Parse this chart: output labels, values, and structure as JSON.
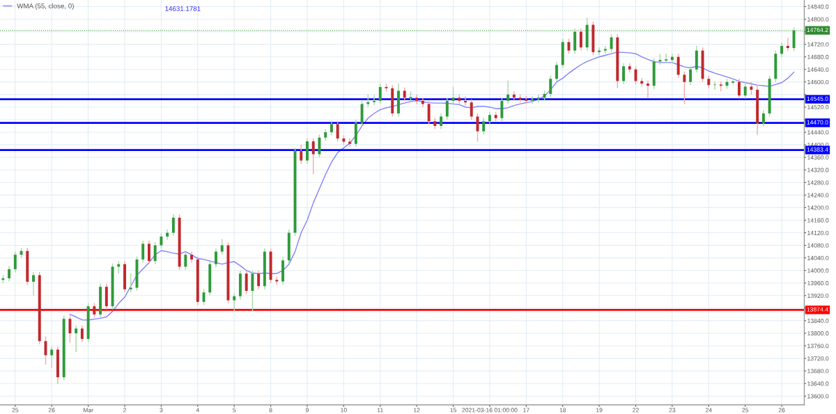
{
  "chart_data": {
    "type": "candlestick",
    "categories": [
      null,
      null,
      "25",
      null,
      null,
      null,
      null,
      null,
      "26",
      null,
      null,
      null,
      null,
      null,
      "Mar",
      null,
      null,
      null,
      null,
      null,
      "2",
      null,
      null,
      null,
      null,
      null,
      "3",
      null,
      null,
      null,
      null,
      null,
      "4",
      null,
      null,
      null,
      null,
      null,
      "5",
      null,
      null,
      null,
      null,
      null,
      "8",
      null,
      null,
      null,
      null,
      null,
      "9",
      null,
      null,
      null,
      null,
      null,
      "10",
      null,
      null,
      null,
      null,
      null,
      "11",
      null,
      null,
      null,
      null,
      null,
      "12",
      null,
      null,
      null,
      null,
      null,
      "15",
      null,
      null,
      null,
      null,
      null,
      "2021-03-16 01:00:00",
      null,
      null,
      null,
      null,
      null,
      "17",
      null,
      null,
      null,
      null,
      null,
      "18",
      null,
      null,
      null,
      null,
      null,
      "19",
      null,
      null,
      null,
      null,
      null,
      "22",
      null,
      null,
      null,
      null,
      null,
      "23",
      null,
      null,
      null,
      null,
      null,
      "24",
      null,
      null,
      null,
      null,
      null,
      "25",
      null,
      null,
      null,
      null,
      null,
      "26",
      null,
      null
    ],
    "ohlc": [
      [
        13970,
        13985,
        13960,
        13975
      ],
      [
        13975,
        14014,
        13965,
        14004
      ],
      [
        14004,
        14060,
        13994,
        14050
      ],
      [
        14050,
        14072,
        14040,
        14062
      ],
      [
        14062,
        14072,
        13954,
        13964
      ],
      [
        13964,
        13995,
        13920,
        13985
      ],
      [
        13985,
        13995,
        13765,
        13775
      ],
      [
        13775,
        13790,
        13700,
        13730
      ],
      [
        13730,
        13758,
        13690,
        13748
      ],
      [
        13748,
        13758,
        13638,
        13660
      ],
      [
        13660,
        13856,
        13650,
        13846
      ],
      [
        13846,
        13856,
        13770,
        13800
      ],
      [
        13800,
        13825,
        13740,
        13815
      ],
      [
        13815,
        13825,
        13772,
        13782
      ],
      [
        13782,
        13896,
        13772,
        13886
      ],
      [
        13886,
        13896,
        13850,
        13860
      ],
      [
        13860,
        13958,
        13850,
        13948
      ],
      [
        13948,
        13958,
        13876,
        13886
      ],
      [
        13886,
        14022,
        13876,
        14012
      ],
      [
        14012,
        14030,
        13990,
        14020
      ],
      [
        14020,
        14030,
        13930,
        13940
      ],
      [
        13940,
        13990,
        13930,
        13945
      ],
      [
        13945,
        14045,
        13935,
        14035
      ],
      [
        14035,
        14095,
        14025,
        14085
      ],
      [
        14085,
        14095,
        14020,
        14030
      ],
      [
        14030,
        14090,
        14020,
        14080
      ],
      [
        14080,
        14118,
        14070,
        14108
      ],
      [
        14108,
        14130,
        14098,
        14120
      ],
      [
        14120,
        14180,
        14110,
        14168
      ],
      [
        14168,
        14178,
        14002,
        14012
      ],
      [
        14012,
        14060,
        14002,
        14050
      ],
      [
        14050,
        14060,
        14025,
        14035
      ],
      [
        14035,
        14045,
        13890,
        13900
      ],
      [
        13900,
        13940,
        13890,
        13930
      ],
      [
        13930,
        14030,
        13920,
        14020
      ],
      [
        14020,
        14070,
        14010,
        14060
      ],
      [
        14060,
        14100,
        14050,
        14080
      ],
      [
        14080,
        14090,
        13895,
        13905
      ],
      [
        13905,
        13928,
        13870,
        13918
      ],
      [
        13918,
        14000,
        13908,
        13990
      ],
      [
        13990,
        14000,
        13925,
        13935
      ],
      [
        13935,
        14000,
        13870,
        13990
      ],
      [
        13990,
        14000,
        13940,
        13950
      ],
      [
        13950,
        14070,
        13940,
        14060
      ],
      [
        14060,
        14070,
        13960,
        13970
      ],
      [
        13970,
        13980,
        13955,
        13965
      ],
      [
        13965,
        14042,
        13955,
        14032
      ],
      [
        14032,
        14130,
        14022,
        14120
      ],
      [
        14120,
        14390,
        14110,
        14380
      ],
      [
        14380,
        14400,
        14340,
        14350
      ],
      [
        14350,
        14421,
        14340,
        14411
      ],
      [
        14411,
        14421,
        14306,
        14370
      ],
      [
        14370,
        14433,
        14360,
        14423
      ],
      [
        14423,
        14450,
        14413,
        14440
      ],
      [
        14440,
        14476,
        14430,
        14466
      ],
      [
        14466,
        14476,
        14410,
        14420
      ],
      [
        14420,
        14430,
        14400,
        14410
      ],
      [
        14410,
        14420,
        14393,
        14403
      ],
      [
        14403,
        14480,
        14393,
        14470
      ],
      [
        14470,
        14540,
        14460,
        14530
      ],
      [
        14530,
        14560,
        14520,
        14536
      ],
      [
        14536,
        14558,
        14526,
        14540
      ],
      [
        14540,
        14594,
        14530,
        14584
      ],
      [
        14584,
        14594,
        14570,
        14580
      ],
      [
        14580,
        14590,
        14490,
        14500
      ],
      [
        14500,
        14595,
        14490,
        14572
      ],
      [
        14572,
        14582,
        14540,
        14550
      ],
      [
        14550,
        14570,
        14540,
        14550
      ],
      [
        14550,
        14560,
        14530,
        14540
      ],
      [
        14540,
        14550,
        14520,
        14530
      ],
      [
        14530,
        14540,
        14465,
        14475
      ],
      [
        14475,
        14485,
        14450,
        14460
      ],
      [
        14460,
        14500,
        14450,
        14490
      ],
      [
        14490,
        14550,
        14480,
        14540
      ],
      [
        14540,
        14585,
        14530,
        14550
      ],
      [
        14550,
        14560,
        14530,
        14540
      ],
      [
        14540,
        14555,
        14525,
        14535
      ],
      [
        14535,
        14545,
        14480,
        14490
      ],
      [
        14490,
        14500,
        14410,
        14443
      ],
      [
        14443,
        14485,
        14433,
        14475
      ],
      [
        14475,
        14505,
        14465,
        14495
      ],
      [
        14495,
        14505,
        14475,
        14485
      ],
      [
        14485,
        14550,
        14475,
        14540
      ],
      [
        14540,
        14605,
        14530,
        14560
      ],
      [
        14560,
        14570,
        14540,
        14550
      ],
      [
        14550,
        14560,
        14535,
        14545
      ],
      [
        14545,
        14555,
        14530,
        14540
      ],
      [
        14540,
        14555,
        14530,
        14545
      ],
      [
        14545,
        14560,
        14535,
        14550
      ],
      [
        14550,
        14572,
        14540,
        14562
      ],
      [
        14562,
        14620,
        14552,
        14610
      ],
      [
        14610,
        14664,
        14600,
        14654
      ],
      [
        14654,
        14737,
        14644,
        14727
      ],
      [
        14727,
        14737,
        14690,
        14700
      ],
      [
        14700,
        14770,
        14690,
        14760
      ],
      [
        14760,
        14770,
        14700,
        14710
      ],
      [
        14710,
        14805,
        14700,
        14782
      ],
      [
        14782,
        14792,
        14685,
        14695
      ],
      [
        14695,
        14710,
        14685,
        14700
      ],
      [
        14700,
        14715,
        14690,
        14705
      ],
      [
        14705,
        14752,
        14695,
        14742
      ],
      [
        14742,
        14752,
        14580,
        14603
      ],
      [
        14603,
        14660,
        14593,
        14650
      ],
      [
        14650,
        14660,
        14630,
        14640
      ],
      [
        14640,
        14650,
        14593,
        14603
      ],
      [
        14603,
        14613,
        14585,
        14595
      ],
      [
        14595,
        14605,
        14550,
        14588
      ],
      [
        14588,
        14675,
        14578,
        14665
      ],
      [
        14665,
        14690,
        14655,
        14670
      ],
      [
        14670,
        14690,
        14660,
        14670
      ],
      [
        14670,
        14690,
        14660,
        14680
      ],
      [
        14680,
        14690,
        14613,
        14623
      ],
      [
        14623,
        14633,
        14530,
        14600
      ],
      [
        14600,
        14650,
        14590,
        14640
      ],
      [
        14640,
        14715,
        14630,
        14700
      ],
      [
        14700,
        14710,
        14600,
        14610
      ],
      [
        14610,
        14620,
        14580,
        14590
      ],
      [
        14590,
        14602,
        14575,
        14592
      ],
      [
        14592,
        14602,
        14570,
        14588
      ],
      [
        14588,
        14610,
        14578,
        14600
      ],
      [
        14600,
        14612,
        14590,
        14600
      ],
      [
        14600,
        14610,
        14547,
        14557
      ],
      [
        14557,
        14600,
        14547,
        14585
      ],
      [
        14585,
        14600,
        14560,
        14575
      ],
      [
        14575,
        14590,
        14432,
        14469
      ],
      [
        14469,
        14510,
        14459,
        14500
      ],
      [
        14500,
        14620,
        14490,
        14610
      ],
      [
        14610,
        14700,
        14600,
        14690
      ],
      [
        14690,
        14725,
        14680,
        14715
      ],
      [
        14715,
        14740,
        14698,
        14708
      ],
      [
        14708,
        14774,
        14698,
        14764
      ]
    ],
    "series": [
      {
        "name": "WMA (55, close, 0)",
        "type": "line",
        "color": "#8080ff",
        "values": [
          null,
          null,
          null,
          null,
          null,
          null,
          null,
          null,
          null,
          null,
          null,
          13860,
          13852,
          13843,
          13842,
          13845,
          13848,
          13852,
          13870,
          13895,
          13915,
          13950,
          13985,
          14005,
          14025,
          14050,
          14063,
          14060,
          14055,
          14052,
          14060,
          14050,
          14038,
          14035,
          14030,
          14025,
          14020,
          14025,
          14028,
          14015,
          14000,
          13992,
          13990,
          13992,
          13990,
          13990,
          14000,
          14020,
          14060,
          14120,
          14160,
          14215,
          14260,
          14305,
          14345,
          14375,
          14390,
          14405,
          14430,
          14460,
          14485,
          14500,
          14512,
          14518,
          14522,
          14528,
          14533,
          14538,
          14540,
          14537,
          14534,
          14533,
          14533,
          14532,
          14530,
          14528,
          14520,
          14518,
          14522,
          14523,
          14520,
          14515,
          14515,
          14518,
          14525,
          14530,
          14534,
          14538,
          14545,
          14555,
          14575,
          14600,
          14612,
          14628,
          14642,
          14655,
          14665,
          14673,
          14680,
          14685,
          14690,
          14695,
          14694,
          14693,
          14690,
          14680,
          14672,
          14665,
          14662,
          14662,
          14662,
          14655,
          14648,
          14645,
          14650,
          14645,
          14635,
          14628,
          14622,
          14616,
          14610,
          14602,
          14598,
          14594,
          14590,
          14588,
          14586,
          14592,
          14598,
          14612,
          14631
        ]
      }
    ],
    "annotations": [
      "14631.1781"
    ],
    "ref_lines": [
      {
        "axis": "y",
        "value": 14764.2,
        "label": "14764.2",
        "color": "#2e8b2e",
        "line_style": "dotted"
      },
      {
        "axis": "y",
        "value": 14545.0,
        "label": "14545.0",
        "color": "#0000ff"
      },
      {
        "axis": "y",
        "value": 14470.0,
        "label": "14470.0",
        "color": "#0000ff"
      },
      {
        "axis": "y",
        "value": 14383.4,
        "label": "14383.4",
        "color": "#0000ff"
      },
      {
        "axis": "y",
        "value": 13874.4,
        "label": "13874.4",
        "color": "#ff0000"
      }
    ],
    "ylim": [
      13572,
      14861
    ],
    "yticks": [
      {
        "value": 13600,
        "label": "13600.0"
      },
      {
        "value": 13640,
        "label": "13640.0"
      },
      {
        "value": 13680,
        "label": "13680.0"
      },
      {
        "value": 13720,
        "label": "13720.0"
      },
      {
        "value": 13760,
        "label": "13760.0"
      },
      {
        "value": 13800,
        "label": "13800.0"
      },
      {
        "value": 13840,
        "label": "13840.0"
      },
      {
        "value": 13880,
        "label": null
      },
      {
        "value": 13920,
        "label": "13920.0"
      },
      {
        "value": 13960,
        "label": "13960.0"
      },
      {
        "value": 14000,
        "label": "14000.0"
      },
      {
        "value": 14040,
        "label": "14040.0"
      },
      {
        "value": 14080,
        "label": "14080.0"
      },
      {
        "value": 14120,
        "label": "14120.0"
      },
      {
        "value": 14160,
        "label": "14160.0"
      },
      {
        "value": 14200,
        "label": "14200.0"
      },
      {
        "value": 14240,
        "label": "14240.0"
      },
      {
        "value": 14280,
        "label": "14280.0"
      },
      {
        "value": 14320,
        "label": "14320.0"
      },
      {
        "value": 14360,
        "label": "14360.0"
      },
      {
        "value": 14400,
        "label": "14400.0"
      },
      {
        "value": 14440,
        "label": "14440.0"
      },
      {
        "value": 14480,
        "label": null
      },
      {
        "value": 14520,
        "label": "14520.0"
      },
      {
        "value": 14560,
        "label": null
      },
      {
        "value": 14600,
        "label": "14600.0"
      },
      {
        "value": 14640,
        "label": "14640.0"
      },
      {
        "value": 14680,
        "label": "14680.0"
      },
      {
        "value": 14720,
        "label": "14720.0"
      },
      {
        "value": 14760,
        "label": null
      },
      {
        "value": 14800,
        "label": "14800.0"
      },
      {
        "value": 14840,
        "label": "14840.0"
      }
    ],
    "grid": true,
    "legend": "top left"
  }
}
